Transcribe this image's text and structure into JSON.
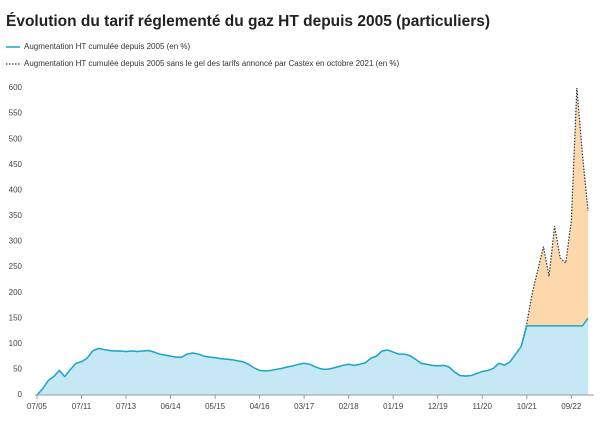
{
  "chart_data": {
    "type": "area",
    "title": "Évolution du tarif réglementé du gaz HT depuis 2005 (particuliers)",
    "categories": [
      "07/05",
      null,
      null,
      null,
      null,
      null,
      null,
      null,
      "07/11",
      null,
      null,
      null,
      null,
      null,
      null,
      null,
      "07/13",
      null,
      null,
      null,
      null,
      null,
      null,
      null,
      "06/14",
      null,
      null,
      null,
      null,
      null,
      null,
      null,
      "05/15",
      null,
      null,
      null,
      null,
      null,
      null,
      null,
      "04/16",
      null,
      null,
      null,
      null,
      null,
      null,
      null,
      "03/17",
      null,
      null,
      null,
      null,
      null,
      null,
      null,
      "02/18",
      null,
      null,
      null,
      null,
      null,
      null,
      null,
      "01/19",
      null,
      null,
      null,
      null,
      null,
      null,
      null,
      "12/19",
      null,
      null,
      null,
      null,
      null,
      null,
      null,
      "11/20",
      null,
      null,
      null,
      null,
      null,
      null,
      null,
      "10/21",
      null,
      null,
      null,
      null,
      null,
      null,
      null,
      "09/22",
      null,
      null,
      null
    ],
    "series": [
      {
        "name": "Augmentation HT cumulée depuis 2005 (en %)",
        "color": "#1aa7c9",
        "fill": "#c6e8f4",
        "style": "solid",
        "values": [
          0,
          12,
          28,
          36,
          48,
          36,
          50,
          62,
          65,
          72,
          86,
          91,
          89,
          87,
          86,
          86,
          85,
          86,
          85,
          86,
          87,
          84,
          80,
          78,
          76,
          74,
          74,
          80,
          82,
          80,
          76,
          74,
          73,
          71,
          70,
          69,
          67,
          65,
          60,
          53,
          48,
          47,
          48,
          50,
          52,
          55,
          57,
          60,
          62,
          60,
          55,
          51,
          50,
          52,
          55,
          58,
          60,
          58,
          60,
          63,
          72,
          76,
          86,
          88,
          84,
          80,
          80,
          77,
          70,
          62,
          60,
          58,
          57,
          58,
          55,
          45,
          38,
          37,
          38,
          42,
          46,
          48,
          52,
          62,
          58,
          65,
          80,
          95,
          135,
          135,
          135,
          135,
          135,
          135,
          135,
          135,
          135,
          135,
          135,
          150
        ]
      },
      {
        "name": "Augmentation HT cumulée depuis 2005 sans le gel des tarifs annoncé par Castex en octobre 2021 (en %)",
        "color": "#1f3a4a",
        "fill": "#fdd8ab",
        "style": "dotted",
        "values": [
          0,
          12,
          28,
          36,
          48,
          36,
          50,
          62,
          65,
          72,
          86,
          91,
          89,
          87,
          86,
          86,
          85,
          86,
          85,
          86,
          87,
          84,
          80,
          78,
          76,
          74,
          74,
          80,
          82,
          80,
          76,
          74,
          73,
          71,
          70,
          69,
          67,
          65,
          60,
          53,
          48,
          47,
          48,
          50,
          52,
          55,
          57,
          60,
          62,
          60,
          55,
          51,
          50,
          52,
          55,
          58,
          60,
          58,
          60,
          63,
          72,
          76,
          86,
          88,
          84,
          80,
          80,
          77,
          70,
          62,
          60,
          58,
          57,
          58,
          55,
          45,
          38,
          37,
          38,
          42,
          46,
          48,
          52,
          62,
          58,
          65,
          80,
          95,
          140,
          200,
          245,
          290,
          232,
          330,
          268,
          258,
          340,
          600,
          470,
          360
        ]
      }
    ],
    "ylim": [
      0,
      600
    ],
    "yticks": [
      0,
      50,
      100,
      150,
      200,
      250,
      300,
      350,
      400,
      450,
      500,
      550,
      600
    ],
    "grid": false
  }
}
